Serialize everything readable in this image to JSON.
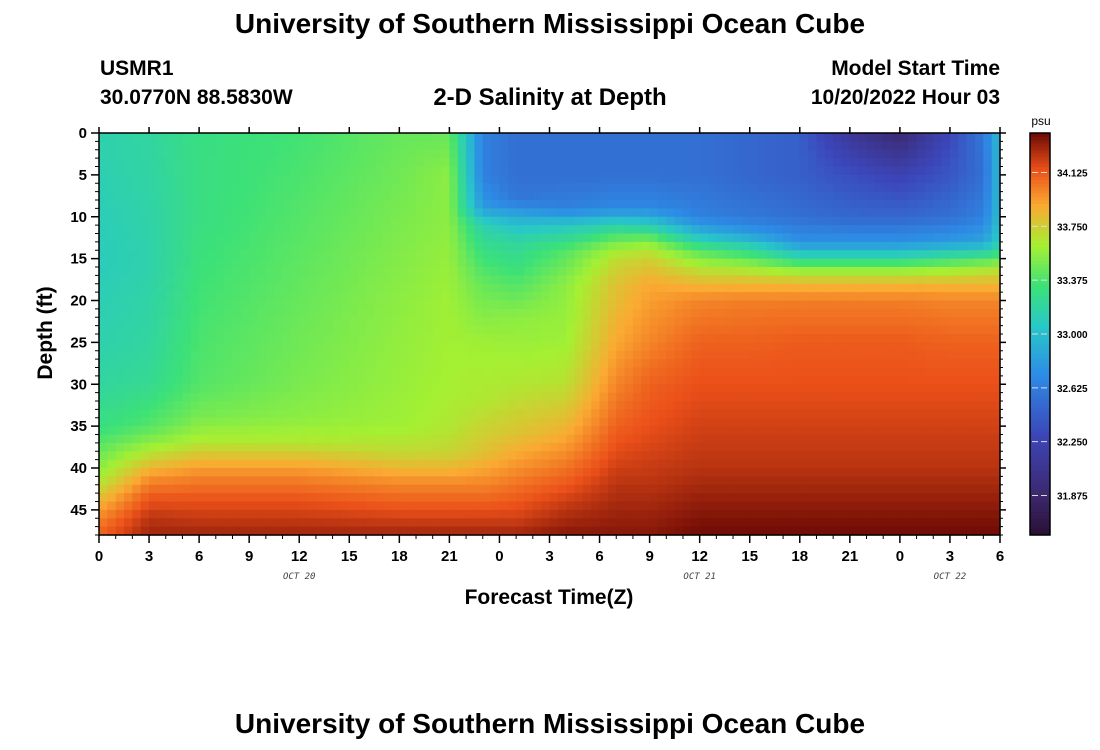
{
  "header": {
    "title": "University of Southern Mississippi Ocean Cube",
    "station_id": "USMR1",
    "coordinates": "30.0770N  88.5830W",
    "plot_title": "2-D Salinity at Depth",
    "model_start_label": "Model Start Time",
    "model_start_value": "10/20/2022 Hour 03",
    "footer_title": "University of Southern Mississippi Ocean Cube"
  },
  "chart_data": {
    "type": "heatmap",
    "title": "2-D Salinity at Depth",
    "xlabel": "Forecast Time(Z)",
    "ylabel": "Depth (ft)",
    "x_range_hours": [
      0,
      54
    ],
    "y_range_ft": [
      0,
      48
    ],
    "x_tick_labels": [
      "0",
      "3",
      "6",
      "9",
      "12",
      "15",
      "18",
      "21",
      "0",
      "3",
      "6",
      "9",
      "12",
      "15",
      "18",
      "21",
      "0",
      "3",
      "6"
    ],
    "y_ticks": [
      0,
      5,
      10,
      15,
      20,
      25,
      30,
      35,
      40,
      45
    ],
    "date_labels": [
      {
        "label": "OCT 20",
        "hour": 12
      },
      {
        "label": "OCT 21",
        "hour": 36
      },
      {
        "label": "OCT 22",
        "hour": 51
      }
    ],
    "colorbar": {
      "unit": "psu",
      "min": 31.6,
      "max": 34.4,
      "ticks": [
        34.125,
        33.75,
        33.375,
        33.0,
        32.625,
        32.25,
        31.875
      ],
      "tick_labels": [
        "34.125",
        "33.750",
        "33.375",
        "33.000",
        "32.625",
        "32.250",
        "31.875"
      ]
    },
    "salinity_profiles": [
      {
        "hour": 0,
        "depth_ft": [
          0,
          15,
          25,
          30,
          35,
          38,
          41,
          44,
          46,
          48
        ],
        "psu": [
          33.15,
          33.1,
          33.15,
          33.2,
          33.3,
          33.45,
          33.6,
          33.85,
          34.0,
          34.1
        ]
      },
      {
        "hour": 3,
        "depth_ft": [
          0,
          15,
          25,
          30,
          35,
          37,
          39,
          41,
          43,
          46,
          48
        ],
        "psu": [
          33.2,
          33.15,
          33.2,
          33.25,
          33.4,
          33.55,
          33.75,
          33.95,
          34.1,
          34.25,
          34.3
        ]
      },
      {
        "hour": 6,
        "depth_ft": [
          0,
          10,
          20,
          30,
          34,
          37,
          39,
          41,
          44,
          48
        ],
        "psu": [
          33.3,
          33.3,
          33.35,
          33.4,
          33.5,
          33.65,
          33.85,
          34.0,
          34.15,
          34.3
        ]
      },
      {
        "hour": 12,
        "depth_ft": [
          0,
          10,
          20,
          30,
          34,
          37,
          39,
          41,
          44,
          48
        ],
        "psu": [
          33.35,
          33.4,
          33.45,
          33.5,
          33.55,
          33.65,
          33.85,
          34.0,
          34.15,
          34.3
        ]
      },
      {
        "hour": 18,
        "depth_ft": [
          0,
          10,
          20,
          30,
          35,
          38,
          40,
          42,
          45,
          48
        ],
        "psu": [
          33.45,
          33.5,
          33.55,
          33.58,
          33.6,
          33.7,
          33.85,
          34.0,
          34.15,
          34.3
        ]
      },
      {
        "hour": 21,
        "depth_ft": [
          0,
          5,
          10,
          20,
          30,
          35,
          38,
          40,
          42,
          44,
          48
        ],
        "psu": [
          33.45,
          33.55,
          33.55,
          33.6,
          33.62,
          33.65,
          33.72,
          33.85,
          34.0,
          34.1,
          34.3
        ]
      },
      {
        "hour": 23,
        "depth_ft": [
          0,
          5,
          9,
          11,
          14,
          18,
          25,
          32,
          38,
          42,
          46,
          48
        ],
        "psu": [
          32.65,
          32.65,
          32.8,
          33.15,
          33.3,
          33.45,
          33.6,
          33.65,
          33.8,
          34.0,
          34.2,
          34.3
        ]
      },
      {
        "hour": 25,
        "depth_ft": [
          0,
          5,
          8,
          10,
          13,
          17,
          22,
          30,
          36,
          42,
          46,
          48
        ],
        "psu": [
          32.55,
          32.55,
          32.6,
          32.9,
          33.2,
          33.35,
          33.55,
          33.65,
          33.8,
          34.05,
          34.2,
          34.3
        ]
      },
      {
        "hour": 28,
        "depth_ft": [
          0,
          5,
          9,
          11,
          14,
          18,
          25,
          30,
          35,
          40,
          45,
          48
        ],
        "psu": [
          32.55,
          32.55,
          32.65,
          33.05,
          33.4,
          33.55,
          33.6,
          33.68,
          33.85,
          34.05,
          34.25,
          34.35
        ]
      },
      {
        "hour": 31,
        "depth_ft": [
          0,
          5,
          9,
          11,
          13,
          15,
          18,
          25,
          30,
          35,
          42,
          48
        ],
        "psu": [
          32.55,
          32.55,
          32.7,
          33.15,
          33.5,
          33.7,
          33.8,
          33.9,
          34.0,
          34.1,
          34.25,
          34.35
        ]
      },
      {
        "hour": 33,
        "depth_ft": [
          0,
          5,
          9,
          11,
          13,
          15,
          18,
          25,
          30,
          35,
          42,
          48
        ],
        "psu": [
          32.55,
          32.55,
          32.7,
          33.1,
          33.55,
          33.75,
          33.9,
          34.0,
          34.1,
          34.15,
          34.25,
          34.35
        ]
      },
      {
        "hour": 36,
        "depth_ft": [
          0,
          5,
          10,
          12,
          14,
          16,
          18,
          20,
          25,
          30,
          40,
          48
        ],
        "psu": [
          32.55,
          32.55,
          32.65,
          32.95,
          33.4,
          33.65,
          33.85,
          34.0,
          34.1,
          34.15,
          34.25,
          34.4
        ]
      },
      {
        "hour": 39,
        "depth_ft": [
          0,
          5,
          10,
          12,
          14,
          16,
          18,
          20,
          25,
          30,
          40,
          48
        ],
        "psu": [
          32.5,
          32.5,
          32.6,
          32.8,
          33.25,
          33.6,
          33.85,
          34.02,
          34.1,
          34.15,
          34.25,
          34.4
        ]
      },
      {
        "hour": 42,
        "depth_ft": [
          0,
          5,
          10,
          13,
          15,
          16,
          18,
          20,
          25,
          30,
          40,
          48
        ],
        "psu": [
          32.45,
          32.45,
          32.55,
          32.75,
          33.2,
          33.5,
          33.85,
          34.02,
          34.12,
          34.15,
          34.25,
          34.4
        ]
      },
      {
        "hour": 45,
        "depth_ft": [
          0,
          5,
          10,
          13,
          15,
          16,
          18,
          20,
          25,
          30,
          40,
          48
        ],
        "psu": [
          32.1,
          32.35,
          32.5,
          32.75,
          33.2,
          33.5,
          33.85,
          34.02,
          34.12,
          34.15,
          34.25,
          34.4
        ]
      },
      {
        "hour": 48,
        "depth_ft": [
          0,
          5,
          10,
          13,
          15,
          16,
          18,
          20,
          25,
          30,
          40,
          48
        ],
        "psu": [
          31.9,
          32.25,
          32.5,
          32.75,
          33.2,
          33.5,
          33.85,
          34.02,
          34.12,
          34.15,
          34.25,
          34.4
        ]
      },
      {
        "hour": 51,
        "depth_ft": [
          0,
          5,
          10,
          13,
          15,
          16,
          18,
          20,
          25,
          30,
          40,
          48
        ],
        "psu": [
          32.3,
          32.4,
          32.55,
          32.8,
          33.3,
          33.55,
          33.85,
          34.0,
          34.1,
          34.15,
          34.25,
          34.4
        ]
      },
      {
        "hour": 53,
        "depth_ft": [
          0,
          5,
          10,
          13,
          15,
          16,
          18,
          20,
          25,
          30,
          40,
          48
        ],
        "psu": [
          32.6,
          32.55,
          32.65,
          32.85,
          33.35,
          33.6,
          33.85,
          34.0,
          34.1,
          34.15,
          34.25,
          34.4
        ]
      },
      {
        "hour": 54,
        "depth_ft": [
          0,
          5,
          10,
          13,
          15,
          16,
          18,
          20,
          25,
          30,
          40,
          48
        ],
        "psu": [
          33.0,
          33.0,
          33.0,
          33.1,
          33.4,
          33.65,
          33.85,
          34.0,
          34.1,
          34.15,
          34.25,
          34.4
        ]
      }
    ]
  }
}
